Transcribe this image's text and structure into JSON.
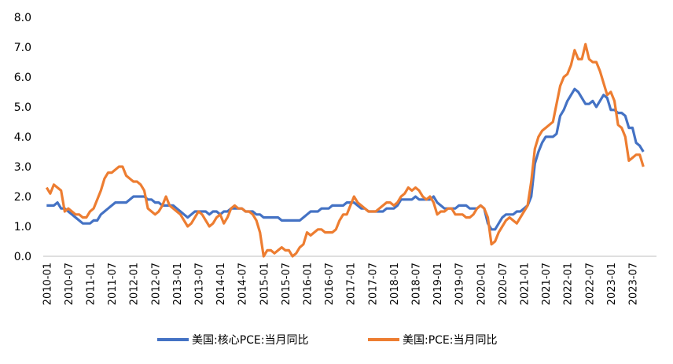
{
  "chart_data": {
    "type": "line",
    "categories": [
      "2010-01",
      null,
      null,
      null,
      null,
      null,
      "2010-07",
      null,
      null,
      null,
      null,
      null,
      "2011-01",
      null,
      null,
      null,
      null,
      null,
      "2011-07",
      null,
      null,
      null,
      null,
      null,
      "2012-01",
      null,
      null,
      null,
      null,
      null,
      "2012-07",
      null,
      null,
      null,
      null,
      null,
      "2013-01",
      null,
      null,
      null,
      null,
      null,
      "2013-07",
      null,
      null,
      null,
      null,
      null,
      "2014-01",
      null,
      null,
      null,
      null,
      null,
      "2014-07",
      null,
      null,
      null,
      null,
      null,
      "2015-01",
      null,
      null,
      null,
      null,
      null,
      "2015-07",
      null,
      null,
      null,
      null,
      null,
      "2016-01",
      null,
      null,
      null,
      null,
      null,
      "2016-07",
      null,
      null,
      null,
      null,
      null,
      "2017-01",
      null,
      null,
      null,
      null,
      null,
      "2017-07",
      null,
      null,
      null,
      null,
      null,
      "2018-01",
      null,
      null,
      null,
      null,
      null,
      "2018-07",
      null,
      null,
      null,
      null,
      null,
      "2019-01",
      null,
      null,
      null,
      null,
      null,
      "2019-07",
      null,
      null,
      null,
      null,
      null,
      "2020-01",
      null,
      null,
      null,
      null,
      null,
      "2020-07",
      null,
      null,
      null,
      null,
      null,
      "2021-01",
      null,
      null,
      null,
      null,
      null,
      "2021-07",
      null,
      null,
      null,
      null,
      null,
      "2022-01",
      null,
      null,
      null,
      null,
      null,
      "2022-07",
      null,
      null,
      null,
      null,
      null,
      "2023-01",
      null,
      null,
      null,
      null,
      null,
      "2023-07",
      null,
      null,
      null
    ],
    "series": [
      {
        "name": "美国:核心PCE:当月同比",
        "color": "#4472c4",
        "values": [
          1.7,
          1.7,
          1.7,
          1.8,
          1.6,
          1.6,
          1.5,
          1.4,
          1.3,
          1.2,
          1.1,
          1.1,
          1.1,
          1.2,
          1.2,
          1.4,
          1.5,
          1.6,
          1.7,
          1.8,
          1.8,
          1.8,
          1.8,
          1.9,
          2.0,
          2.0,
          2.0,
          2.0,
          1.9,
          1.9,
          1.8,
          1.8,
          1.7,
          1.7,
          1.7,
          1.7,
          1.6,
          1.5,
          1.4,
          1.3,
          1.4,
          1.5,
          1.5,
          1.5,
          1.5,
          1.4,
          1.5,
          1.5,
          1.4,
          1.5,
          1.5,
          1.6,
          1.6,
          1.6,
          1.6,
          1.5,
          1.5,
          1.5,
          1.4,
          1.4,
          1.3,
          1.3,
          1.3,
          1.3,
          1.3,
          1.2,
          1.2,
          1.2,
          1.2,
          1.2,
          1.2,
          1.3,
          1.4,
          1.5,
          1.5,
          1.5,
          1.6,
          1.6,
          1.6,
          1.7,
          1.7,
          1.7,
          1.7,
          1.8,
          1.8,
          1.8,
          1.7,
          1.6,
          1.6,
          1.5,
          1.5,
          1.5,
          1.5,
          1.5,
          1.6,
          1.6,
          1.6,
          1.7,
          1.9,
          1.9,
          1.9,
          1.9,
          2.0,
          1.9,
          1.9,
          1.9,
          1.9,
          2.0,
          1.8,
          1.7,
          1.6,
          1.6,
          1.6,
          1.6,
          1.7,
          1.7,
          1.7,
          1.6,
          1.6,
          1.6,
          1.7,
          1.6,
          1.1,
          0.9,
          0.9,
          1.1,
          1.3,
          1.4,
          1.4,
          1.4,
          1.5,
          1.5,
          1.6,
          1.7,
          2.0,
          3.1,
          3.5,
          3.8,
          4.0,
          4.0,
          4.0,
          4.1,
          4.7,
          4.9,
          5.2,
          5.4,
          5.6,
          5.5,
          5.3,
          5.1,
          5.1,
          5.2,
          5.0,
          5.2,
          5.4,
          5.3,
          4.9,
          4.9,
          4.8,
          4.8,
          4.7,
          4.3,
          4.3,
          3.8,
          3.7,
          3.5
        ]
      },
      {
        "name": "美国:PCE:当月同比",
        "color": "#ed7d31",
        "values": [
          2.3,
          2.1,
          2.4,
          2.3,
          2.2,
          1.5,
          1.6,
          1.5,
          1.4,
          1.4,
          1.3,
          1.3,
          1.5,
          1.6,
          1.9,
          2.2,
          2.6,
          2.8,
          2.8,
          2.9,
          3.0,
          3.0,
          2.7,
          2.6,
          2.5,
          2.5,
          2.4,
          2.2,
          1.6,
          1.5,
          1.4,
          1.5,
          1.7,
          2.0,
          1.7,
          1.6,
          1.5,
          1.4,
          1.2,
          1.0,
          1.1,
          1.3,
          1.5,
          1.4,
          1.2,
          1.0,
          1.1,
          1.3,
          1.4,
          1.1,
          1.3,
          1.6,
          1.7,
          1.6,
          1.6,
          1.5,
          1.5,
          1.4,
          1.2,
          0.8,
          0.0,
          0.2,
          0.2,
          0.1,
          0.2,
          0.3,
          0.2,
          0.2,
          0.0,
          0.1,
          0.3,
          0.4,
          0.8,
          0.7,
          0.8,
          0.9,
          0.9,
          0.8,
          0.8,
          0.8,
          0.9,
          1.2,
          1.4,
          1.4,
          1.7,
          2.0,
          1.8,
          1.7,
          1.6,
          1.5,
          1.5,
          1.5,
          1.6,
          1.7,
          1.8,
          1.8,
          1.7,
          1.8,
          2.0,
          2.1,
          2.3,
          2.2,
          2.3,
          2.2,
          2.0,
          1.9,
          2.0,
          1.8,
          1.4,
          1.5,
          1.5,
          1.6,
          1.6,
          1.4,
          1.4,
          1.4,
          1.3,
          1.3,
          1.4,
          1.6,
          1.7,
          1.6,
          1.3,
          0.4,
          0.5,
          0.8,
          1.0,
          1.2,
          1.3,
          1.2,
          1.1,
          1.3,
          1.5,
          1.7,
          2.5,
          3.6,
          4.0,
          4.2,
          4.3,
          4.4,
          4.5,
          5.1,
          5.7,
          6.0,
          6.1,
          6.4,
          6.9,
          6.6,
          6.6,
          7.1,
          6.6,
          6.5,
          6.5,
          6.2,
          5.8,
          5.4,
          5.5,
          5.2,
          4.4,
          4.3,
          4.0,
          3.2,
          3.3,
          3.4,
          3.4,
          3.0
        ]
      }
    ],
    "ylim": [
      0,
      8
    ],
    "yticks": [
      {
        "value": 0,
        "label": "0.0"
      },
      {
        "value": 1,
        "label": "1.0"
      },
      {
        "value": 2,
        "label": "2.0"
      },
      {
        "value": 3,
        "label": "3.0"
      },
      {
        "value": 4,
        "label": "4.0"
      },
      {
        "value": 5,
        "label": "5.0"
      },
      {
        "value": 6,
        "label": "6.0"
      },
      {
        "value": 7,
        "label": "7.0"
      },
      {
        "value": 8,
        "label": "8.0"
      }
    ],
    "grid": false,
    "legend": "bottom"
  }
}
